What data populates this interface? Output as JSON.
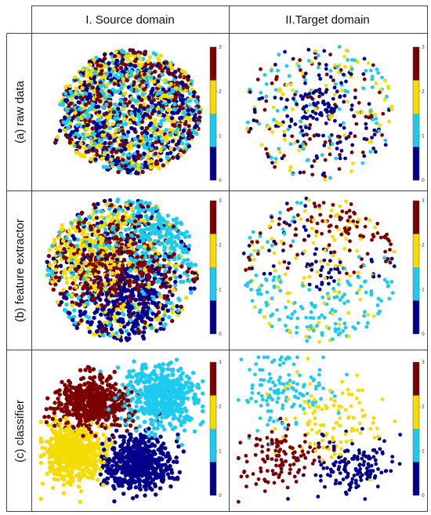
{
  "headers": {
    "source": "I. Source domain",
    "target": "II.Target domain"
  },
  "rows": [
    {
      "label": "(a) raw data"
    },
    {
      "label": "(b) feature extractor"
    },
    {
      "label": "(c) classifier"
    }
  ],
  "colorbar": {
    "ticks": [
      "3",
      "2",
      "1",
      "0"
    ],
    "colors": [
      "#7b0000",
      "#f5dc00",
      "#1ccbef",
      "#00008b"
    ]
  },
  "chart_data": [
    {
      "type": "scatter",
      "row": "(a) raw data",
      "column": "I. Source domain",
      "classes": [
        "0",
        "1",
        "2",
        "3"
      ],
      "pattern": "mixed",
      "colorbar_range": [
        0,
        3
      ]
    },
    {
      "type": "scatter",
      "row": "(a) raw data",
      "column": "II.Target domain",
      "classes": [
        "0",
        "1",
        "2",
        "3"
      ],
      "pattern": "mixed-sparse",
      "colorbar_range": [
        0,
        3
      ]
    },
    {
      "type": "scatter",
      "row": "(b) feature extractor",
      "column": "I. Source domain",
      "classes": [
        "0",
        "1",
        "2",
        "3"
      ],
      "pattern": "partially-separated",
      "colorbar_range": [
        0,
        3
      ]
    },
    {
      "type": "scatter",
      "row": "(b) feature extractor",
      "column": "II.Target domain",
      "classes": [
        "0",
        "1",
        "2",
        "3"
      ],
      "pattern": "concentric",
      "colorbar_range": [
        0,
        3
      ]
    },
    {
      "type": "scatter",
      "row": "(c) classifier",
      "column": "I. Source domain",
      "classes": [
        "0",
        "1",
        "2",
        "3"
      ],
      "pattern": "four-clusters",
      "colorbar_range": [
        0,
        3
      ]
    },
    {
      "type": "scatter",
      "row": "(c) classifier",
      "column": "II.Target domain",
      "classes": [
        "0",
        "1",
        "2",
        "3"
      ],
      "pattern": "clusters-sparse",
      "colorbar_range": [
        0,
        3
      ]
    }
  ]
}
